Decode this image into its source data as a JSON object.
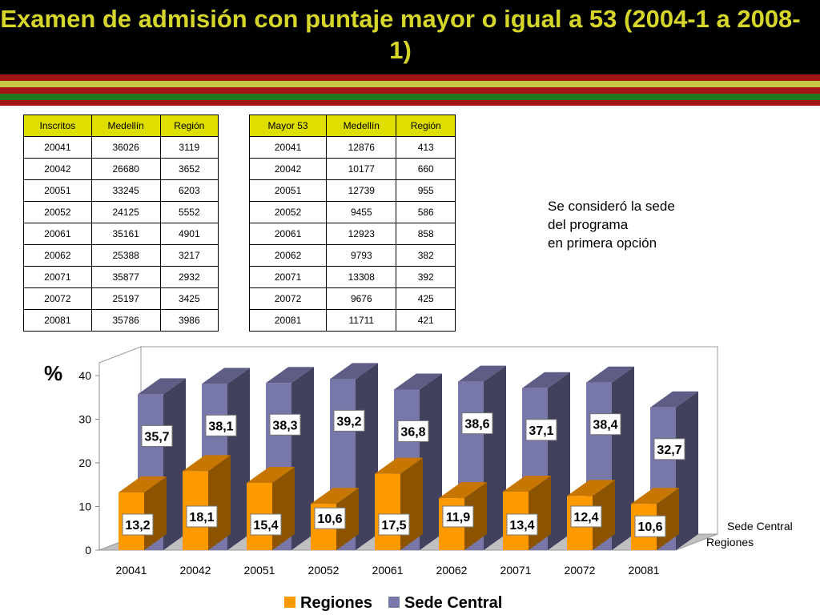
{
  "title": "Examen de admisión con puntaje mayor o igual a 53 (2004-1 a 2008-1)",
  "colors": {
    "header_bg": "#000000",
    "title": "#d5d52a",
    "stripe_red": "#a31515",
    "stripe_olive": "#c8c846",
    "stripe_green": "#1f7a1f",
    "table_header": "#dede00",
    "regiones": "#ff9900",
    "sede_central": "#7777aa"
  },
  "table_inscritos": {
    "headers": [
      "Inscritos",
      "Medellín",
      "Región"
    ],
    "rows": [
      [
        "20041",
        "36026",
        "3119"
      ],
      [
        "20042",
        "26680",
        "3652"
      ],
      [
        "20051",
        "33245",
        "6203"
      ],
      [
        "20052",
        "24125",
        "5552"
      ],
      [
        "20061",
        "35161",
        "4901"
      ],
      [
        "20062",
        "25388",
        "3217"
      ],
      [
        "20071",
        "35877",
        "2932"
      ],
      [
        "20072",
        "25197",
        "3425"
      ],
      [
        "20081",
        "35786",
        "3986"
      ]
    ]
  },
  "table_mayor53": {
    "headers": [
      "Mayor 53",
      "Medellín",
      "Región"
    ],
    "rows": [
      [
        "20041",
        "12876",
        "413"
      ],
      [
        "20042",
        "10177",
        "660"
      ],
      [
        "20051",
        "12739",
        "955"
      ],
      [
        "20052",
        "9455",
        "586"
      ],
      [
        "20061",
        "12923",
        "858"
      ],
      [
        "20062",
        "9793",
        "382"
      ],
      [
        "20071",
        "13308",
        "392"
      ],
      [
        "20072",
        "9676",
        "425"
      ],
      [
        "20081",
        "11711",
        "421"
      ]
    ]
  },
  "note": [
    "Se consideró la sede",
    "del programa",
    "en primera opción"
  ],
  "chart_data": {
    "type": "bar",
    "categories": [
      "20041",
      "20042",
      "20051",
      "20052",
      "20061",
      "20062",
      "20071",
      "20072",
      "20081"
    ],
    "series": [
      {
        "name": "Regiones",
        "values": [
          13.2,
          18.1,
          15.4,
          10.6,
          17.5,
          11.9,
          13.4,
          12.4,
          10.6
        ],
        "labels": [
          "13,2",
          "18,1",
          "15,4",
          "10,6",
          "17,5",
          "11,9",
          "13,4",
          "12,4",
          "10,6"
        ]
      },
      {
        "name": "Sede Central",
        "values": [
          35.7,
          38.1,
          38.3,
          39.2,
          36.8,
          38.6,
          37.1,
          38.4,
          32.7
        ],
        "labels": [
          "35,7",
          "38,1",
          "38,3",
          "39,2",
          "36,8",
          "38,6",
          "37,1",
          "38,4",
          "32,7"
        ]
      }
    ],
    "ylabel": "%",
    "yticks": [
      "0",
      "10",
      "20",
      "30",
      "40"
    ],
    "ylim": [
      0,
      40
    ],
    "legend_position": "bottom",
    "depth_labels": [
      "Sede Central",
      "Regiones"
    ]
  }
}
